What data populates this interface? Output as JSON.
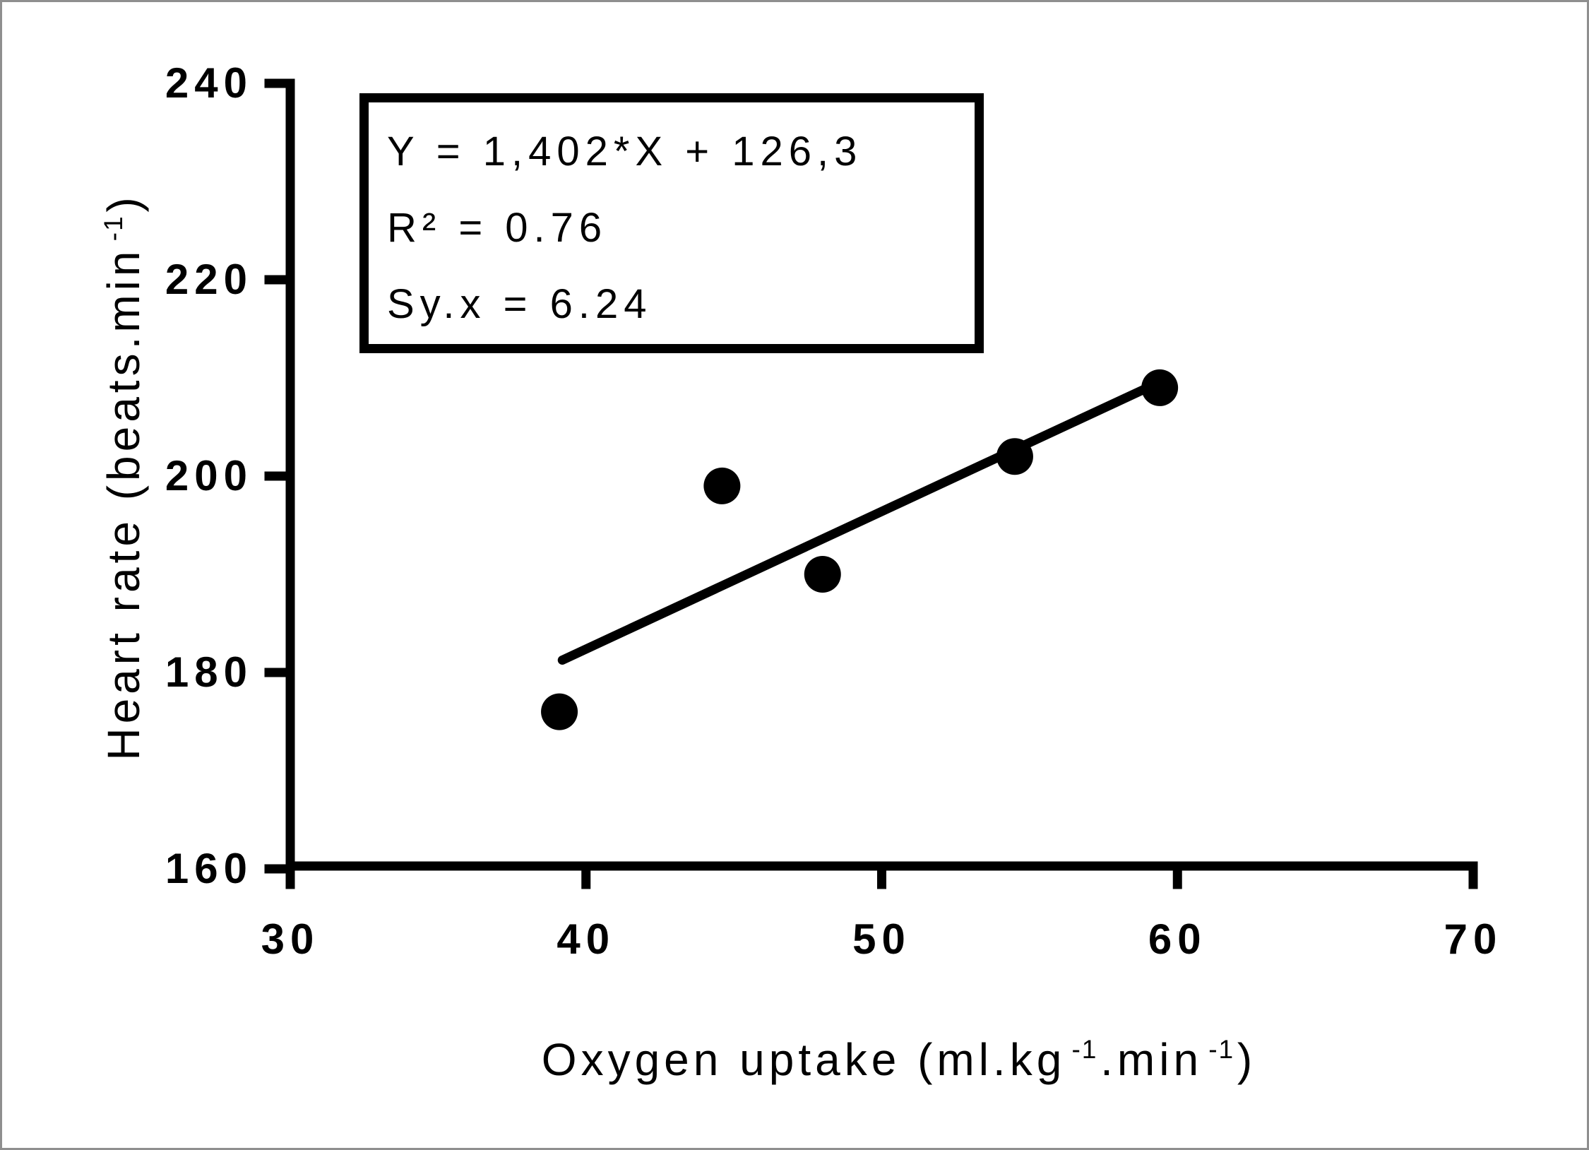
{
  "figure": {
    "background_color": "#ffffff",
    "frame_border_color": "#8f8f8f",
    "ink_color": "#000000"
  },
  "chart_data": {
    "type": "scatter",
    "title": "",
    "xlabel_plain": "Oxygen uptake (ml.kg-1.min-1)",
    "ylabel_plain": "Heart rate (beats.min-1)",
    "xlabel_parts": {
      "pre": "Oxygen uptake (ml.kg",
      "sup1": "-1",
      "mid": ".min",
      "sup2": "-1",
      "post": ")"
    },
    "ylabel_parts": {
      "pre": "Heart rate (beats.min",
      "sup": "-1",
      "post": ")"
    },
    "xlim": [
      30,
      70
    ],
    "ylim": [
      160,
      240
    ],
    "x_ticks": [
      "30",
      "40",
      "50",
      "60",
      "70"
    ],
    "y_ticks": [
      "240",
      "220",
      "200",
      "180",
      "160"
    ],
    "grid": false,
    "legend": "none",
    "marker": {
      "shape": "circle",
      "color": "#000000",
      "radius_px": 26
    },
    "points": [
      {
        "x": 39.1,
        "y": 176
      },
      {
        "x": 44.6,
        "y": 199
      },
      {
        "x": 48.0,
        "y": 190
      },
      {
        "x": 54.5,
        "y": 202
      },
      {
        "x": 59.4,
        "y": 209
      }
    ],
    "regression": {
      "slope": 1.402,
      "intercept": 126.3,
      "x_start": 39.2,
      "x_end": 59.4,
      "line_color": "#000000"
    },
    "stats_box": {
      "lines": [
        "Y = 1,402*X + 126,3",
        "R² = 0.76",
        "Sy.x = 6.24"
      ]
    }
  }
}
